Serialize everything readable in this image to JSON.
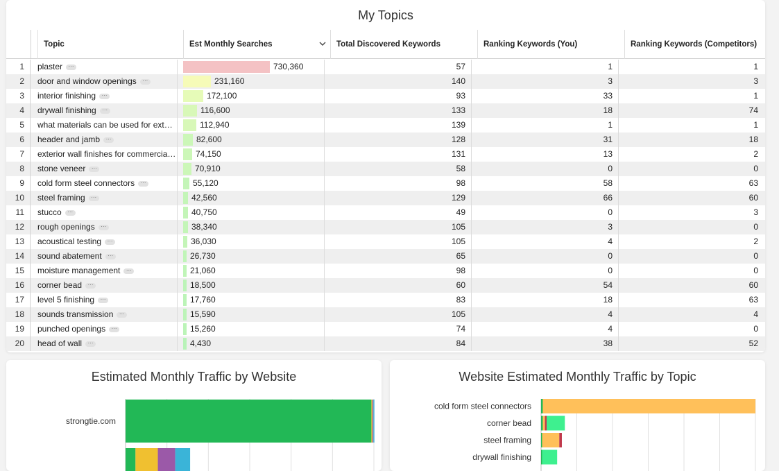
{
  "topics_panel": {
    "title": "My Topics",
    "columns": [
      "Topic",
      "Est Monthly Searches",
      "Total Discovered Keywords",
      "Ranking Keywords (You)",
      "Ranking Keywords (Competitors)"
    ],
    "sort_icon": "chevron-down-icon",
    "more_icon": "more-dots-icon",
    "rows": [
      {
        "idx": "1",
        "topic": "plaster",
        "searches": "730,360",
        "searches_value": 730360,
        "total": "57",
        "you": "1",
        "comp": "1",
        "bar_color": "#f4c2c4"
      },
      {
        "idx": "2",
        "topic": "door and window openings",
        "searches": "231,160",
        "searches_value": 231160,
        "total": "140",
        "you": "3",
        "comp": "3",
        "bar_color": "#f6fbb8"
      },
      {
        "idx": "3",
        "topic": "interior finishing",
        "searches": "172,100",
        "searches_value": 172100,
        "total": "93",
        "you": "33",
        "comp": "1",
        "bar_color": "#e6fbb8"
      },
      {
        "idx": "4",
        "topic": "drywall finishing",
        "searches": "116,600",
        "searches_value": 116600,
        "total": "133",
        "you": "18",
        "comp": "74",
        "bar_color": "#d8f8b8"
      },
      {
        "idx": "5",
        "topic": "what materials can be used for exterior walls",
        "searches": "112,940",
        "searches_value": 112940,
        "total": "139",
        "you": "1",
        "comp": "1",
        "bar_color": "#d8f8b8"
      },
      {
        "idx": "6",
        "topic": "header and jamb",
        "searches": "82,600",
        "searches_value": 82600,
        "total": "128",
        "you": "31",
        "comp": "18",
        "bar_color": "#ccf7b8"
      },
      {
        "idx": "7",
        "topic": "exterior wall finishes for commercial buildings",
        "searches": "74,150",
        "searches_value": 74150,
        "total": "131",
        "you": "13",
        "comp": "2",
        "bar_color": "#ccf7b8"
      },
      {
        "idx": "8",
        "topic": "stone veneer",
        "searches": "70,910",
        "searches_value": 70910,
        "total": "58",
        "you": "0",
        "comp": "0",
        "bar_color": "#ccf7b8"
      },
      {
        "idx": "9",
        "topic": "cold form steel connectors",
        "searches": "55,120",
        "searches_value": 55120,
        "total": "98",
        "you": "58",
        "comp": "63",
        "bar_color": "#c4f5b8"
      },
      {
        "idx": "10",
        "topic": "steel framing",
        "searches": "42,560",
        "searches_value": 42560,
        "total": "129",
        "you": "66",
        "comp": "60",
        "bar_color": "#c4f5b8"
      },
      {
        "idx": "11",
        "topic": "stucco",
        "searches": "40,750",
        "searches_value": 40750,
        "total": "49",
        "you": "0",
        "comp": "3",
        "bar_color": "#c4f5b8"
      },
      {
        "idx": "12",
        "topic": "rough openings",
        "searches": "38,340",
        "searches_value": 38340,
        "total": "105",
        "you": "3",
        "comp": "0",
        "bar_color": "#c4f5b8"
      },
      {
        "idx": "13",
        "topic": "acoustical testing",
        "searches": "36,030",
        "searches_value": 36030,
        "total": "105",
        "you": "4",
        "comp": "2",
        "bar_color": "#c4f5b8"
      },
      {
        "idx": "14",
        "topic": "sound abatement",
        "searches": "26,730",
        "searches_value": 26730,
        "total": "65",
        "you": "0",
        "comp": "0",
        "bar_color": "#c0f5b8"
      },
      {
        "idx": "15",
        "topic": "moisture management",
        "searches": "21,060",
        "searches_value": 21060,
        "total": "98",
        "you": "0",
        "comp": "0",
        "bar_color": "#c0f5b8"
      },
      {
        "idx": "16",
        "topic": "corner bead",
        "searches": "18,500",
        "searches_value": 18500,
        "total": "60",
        "you": "54",
        "comp": "60",
        "bar_color": "#bcf4b8"
      },
      {
        "idx": "17",
        "topic": "level 5 finishing",
        "searches": "17,760",
        "searches_value": 17760,
        "total": "83",
        "you": "18",
        "comp": "63",
        "bar_color": "#bcf4b8"
      },
      {
        "idx": "18",
        "topic": "sounds transmission",
        "searches": "15,590",
        "searches_value": 15590,
        "total": "105",
        "you": "4",
        "comp": "4",
        "bar_color": "#bcf4b8"
      },
      {
        "idx": "19",
        "topic": "punched openings",
        "searches": "15,260",
        "searches_value": 15260,
        "total": "74",
        "you": "4",
        "comp": "0",
        "bar_color": "#bcf4b8"
      },
      {
        "idx": "20",
        "topic": "head of wall",
        "searches": "4,430",
        "searches_value": 4430,
        "total": "84",
        "you": "38",
        "comp": "52",
        "bar_color": "#b8f3b8"
      }
    ]
  },
  "traffic_by_website": {
    "title": "Estimated Monthly Traffic by Website"
  },
  "traffic_by_topic": {
    "title": "Website Estimated Monthly Traffic by Topic"
  },
  "chart_data": [
    {
      "type": "bar",
      "orientation": "horizontal",
      "stacked": true,
      "title": "Estimated Monthly Traffic by Website",
      "categories": [
        "strongtie.com",
        ""
      ],
      "series": [
        {
          "values": [
            0.99,
            0.04
          ],
          "color": "#22b856"
        },
        {
          "values": [
            0.004,
            0.09
          ],
          "color": "#f0c030"
        },
        {
          "values": [
            0.004,
            0.07
          ],
          "color": "#9b59a8"
        },
        {
          "values": [
            0.004,
            0.06
          ],
          "color": "#3ab4d8"
        }
      ],
      "grid": true
    },
    {
      "type": "bar",
      "orientation": "horizontal",
      "stacked": true,
      "title": "Website Estimated Monthly Traffic by Topic",
      "categories": [
        "cold form steel connectors",
        "corner bead",
        "steel framing",
        "drywall finishing"
      ],
      "series": [
        {
          "values": [
            0.008,
            0.008,
            0.005,
            0.005
          ],
          "color": "#22b856"
        },
        {
          "values": [
            0.992,
            0.01,
            0.08,
            0.0
          ],
          "color": "#ffc05a"
        },
        {
          "values": [
            0.0,
            0.008,
            0.012,
            0.0
          ],
          "color": "#c0394b"
        },
        {
          "values": [
            0.0,
            0.085,
            0.0,
            0.07
          ],
          "color": "#3ef08f"
        }
      ],
      "grid": true
    }
  ]
}
